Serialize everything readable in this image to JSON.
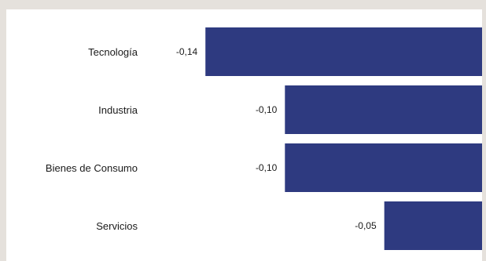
{
  "chart_data": {
    "type": "bar",
    "orientation": "horizontal",
    "categories": [
      "Tecnología",
      "Industria",
      "Bienes de Consumo",
      "Servicios"
    ],
    "values": [
      -0.14,
      -0.1,
      -0.1,
      -0.05
    ],
    "value_labels": [
      "-0,14",
      "-0,10",
      "-0,10",
      "-0,05"
    ],
    "title": "",
    "xlabel": "",
    "ylabel": "",
    "xlim": [
      -0.2,
      0
    ],
    "grid": false,
    "legend": "none",
    "bar_color": "#2e3a80"
  }
}
